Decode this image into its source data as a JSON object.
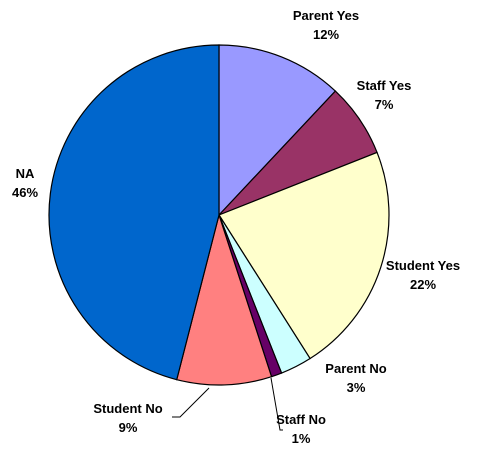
{
  "chart_data": {
    "type": "pie",
    "title": "",
    "series": [
      {
        "values": [
          12,
          7,
          22,
          3,
          1,
          9,
          46
        ]
      }
    ],
    "slices": [
      {
        "label": "Parent Yes",
        "value": 12,
        "display": "12%",
        "color": "#9999ff"
      },
      {
        "label": "Staff Yes",
        "value": 7,
        "display": "7%",
        "color": "#993366"
      },
      {
        "label": "Student Yes",
        "value": 22,
        "display": "22%",
        "color": "#ffffcc"
      },
      {
        "label": "Parent No",
        "value": 3,
        "display": "3%",
        "color": "#ccffff"
      },
      {
        "label": "Staff No",
        "value": 1,
        "display": "1%",
        "color": "#660066"
      },
      {
        "label": "Student No",
        "value": 9,
        "display": "9%",
        "color": "#ff8080"
      },
      {
        "label": "NA",
        "value": 46,
        "display": "46%",
        "color": "#0066cc"
      }
    ],
    "start_angle_deg": 0,
    "direction": "clockwise",
    "legend": "none",
    "labels": "outside-with-leaders"
  }
}
